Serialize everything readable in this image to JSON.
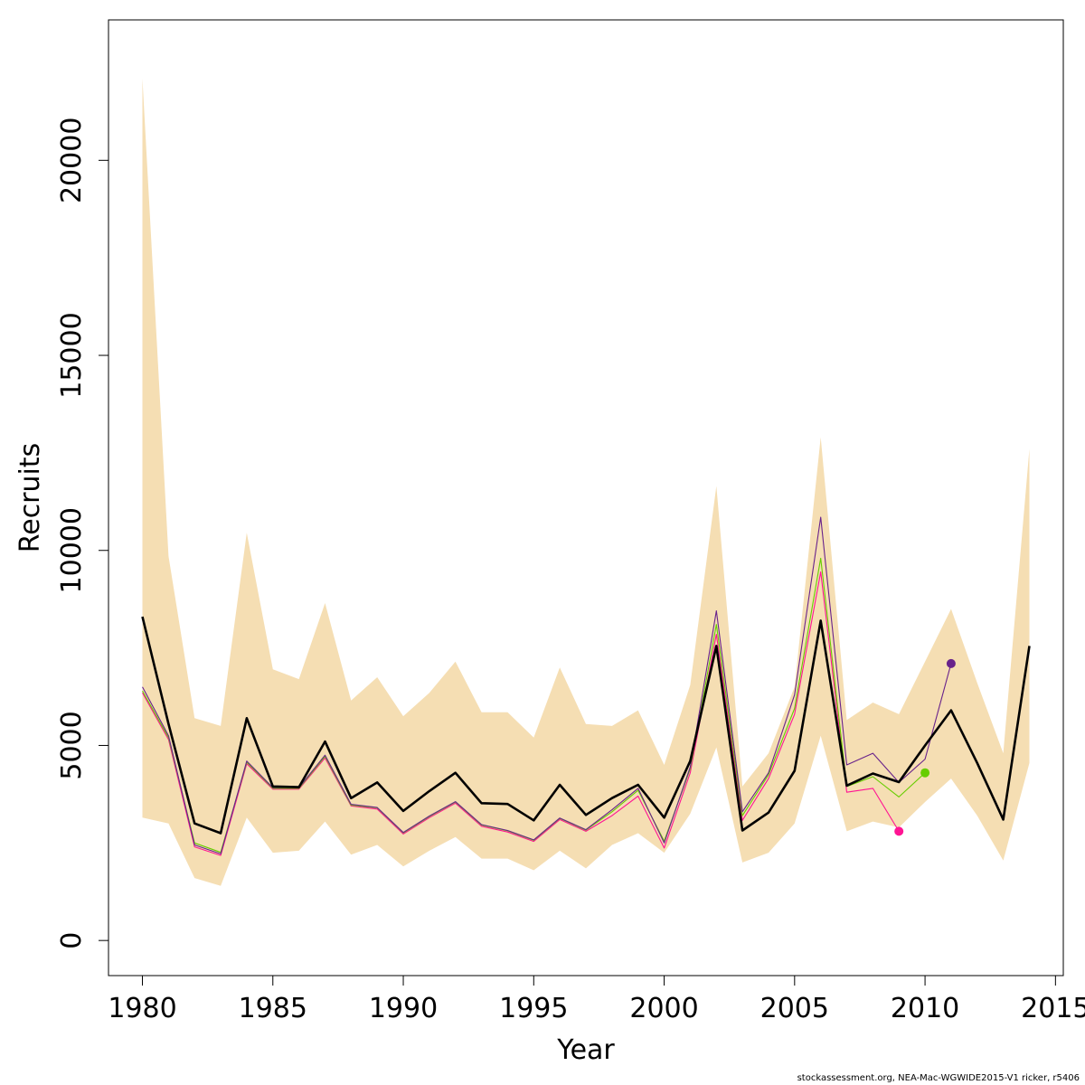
{
  "chart_data": {
    "type": "line",
    "xlabel": "Year",
    "ylabel": "Recruits",
    "xlim": [
      1978.7,
      2015.3
    ],
    "ylim": [
      -900,
      23600
    ],
    "x_ticks": [
      1980,
      1985,
      1990,
      1995,
      2000,
      2005,
      2010,
      2015
    ],
    "y_ticks": [
      0,
      5000,
      10000,
      15000,
      20000
    ],
    "box": true,
    "grid": false,
    "legend": "none",
    "colors": {
      "band": "#f5deb3",
      "main": "#000000",
      "retro_1": "#ff1493",
      "retro_2": "#66cd00",
      "retro_3": "#68228b"
    },
    "confidence_band": {
      "x": [
        1980,
        1981,
        1982,
        1983,
        1984,
        1985,
        1986,
        1987,
        1988,
        1989,
        1990,
        1991,
        1992,
        1993,
        1994,
        1995,
        1996,
        1997,
        1998,
        1999,
        2000,
        2001,
        2002,
        2003,
        2004,
        2005,
        2006,
        2007,
        2008,
        2009,
        2010,
        2011,
        2012,
        2013,
        2014
      ],
      "lower": [
        3150,
        3000,
        1600,
        1400,
        3150,
        2250,
        2300,
        3050,
        2200,
        2450,
        1900,
        2300,
        2650,
        2100,
        2100,
        1800,
        2300,
        1850,
        2450,
        2750,
        2250,
        3250,
        4950,
        2000,
        2250,
        3000,
        5250,
        2800,
        3050,
        2900,
        3550,
        4150,
        3200,
        2050,
        4550
      ],
      "upper": [
        22100,
        9850,
        5700,
        5500,
        10450,
        6950,
        6700,
        8650,
        6150,
        6750,
        5750,
        6350,
        7150,
        5850,
        5850,
        5200,
        7000,
        5550,
        5500,
        5900,
        4500,
        6550,
        11650,
        3950,
        4800,
        6500,
        12900,
        5650,
        6100,
        5800,
        7150,
        8500,
        6600,
        4800,
        12600
      ]
    },
    "series": [
      {
        "color": "#000000",
        "x": [
          1980,
          1981,
          1982,
          1983,
          1984,
          1985,
          1986,
          1987,
          1988,
          1989,
          1990,
          1991,
          1992,
          1993,
          1994,
          1995,
          1996,
          1997,
          1998,
          1999,
          2000,
          2001,
          2002,
          2003,
          2004,
          2005,
          2006,
          2007,
          2008,
          2009,
          2010,
          2011,
          2012,
          2013,
          2014
        ],
        "values": [
          8300,
          5550,
          3000,
          2750,
          5700,
          3950,
          3930,
          5100,
          3650,
          4050,
          3320,
          3830,
          4300,
          3520,
          3500,
          3080,
          3990,
          3220,
          3650,
          3990,
          3150,
          4600,
          7550,
          2820,
          3280,
          4350,
          8200,
          3970,
          4280,
          4060,
          5000,
          5900,
          4550,
          3100,
          7550
        ]
      },
      {
        "color": "#ff1493",
        "x": [
          1980,
          1981,
          1982,
          1983,
          1984,
          1985,
          1986,
          1987,
          1988,
          1989,
          1990,
          1991,
          1992,
          1993,
          1994,
          1995,
          1996,
          1997,
          1998,
          1999,
          2000,
          2001,
          2002,
          2003,
          2004,
          2005,
          2006,
          2007,
          2008,
          2009
        ],
        "values": [
          6350,
          5150,
          2400,
          2180,
          4530,
          3880,
          3880,
          4680,
          3450,
          3370,
          2730,
          3150,
          3520,
          2930,
          2780,
          2540,
          3100,
          2800,
          3200,
          3700,
          2370,
          4300,
          7850,
          3080,
          4150,
          5800,
          9450,
          3800,
          3900,
          2800
        ]
      },
      {
        "color": "#66cd00",
        "x": [
          1980,
          1981,
          1982,
          1983,
          1984,
          1985,
          1986,
          1987,
          1988,
          1989,
          1990,
          1991,
          1992,
          1993,
          1994,
          1995,
          1996,
          1997,
          1998,
          1999,
          2000,
          2001,
          2002,
          2003,
          2004,
          2005,
          2006,
          2007,
          2008,
          2009,
          2010
        ],
        "values": [
          6400,
          5200,
          2500,
          2260,
          4570,
          3900,
          3900,
          4720,
          3470,
          3400,
          2760,
          3180,
          3550,
          2960,
          2810,
          2570,
          3130,
          2830,
          3300,
          3850,
          2550,
          4400,
          8100,
          3200,
          4250,
          5950,
          9800,
          3950,
          4200,
          3680,
          4300
        ]
      },
      {
        "color": "#68228b",
        "x": [
          1980,
          1981,
          1982,
          1983,
          1984,
          1985,
          1986,
          1987,
          1988,
          1989,
          1990,
          1991,
          1992,
          1993,
          1994,
          1995,
          1996,
          1997,
          1998,
          1999,
          2000,
          2001,
          2002,
          2003,
          2004,
          2005,
          2006,
          2007,
          2008,
          2009,
          2010,
          2011
        ],
        "values": [
          6500,
          5250,
          2450,
          2220,
          4600,
          3920,
          3920,
          4750,
          3490,
          3410,
          2770,
          3190,
          3560,
          2970,
          2820,
          2580,
          3140,
          2840,
          3350,
          3900,
          2500,
          4450,
          8450,
          3300,
          4300,
          6300,
          10850,
          4500,
          4800,
          4050,
          4650,
          7100
        ]
      }
    ],
    "endpoints": [
      {
        "color": "#ff1493",
        "x": 2009,
        "y": 2800
      },
      {
        "color": "#66cd00",
        "x": 2010,
        "y": 4300
      },
      {
        "color": "#68228b",
        "x": 2011,
        "y": 7100
      }
    ]
  },
  "footer": "stockassessment.org, NEA-Mac-WGWIDE2015-V1  ricker, r5406"
}
